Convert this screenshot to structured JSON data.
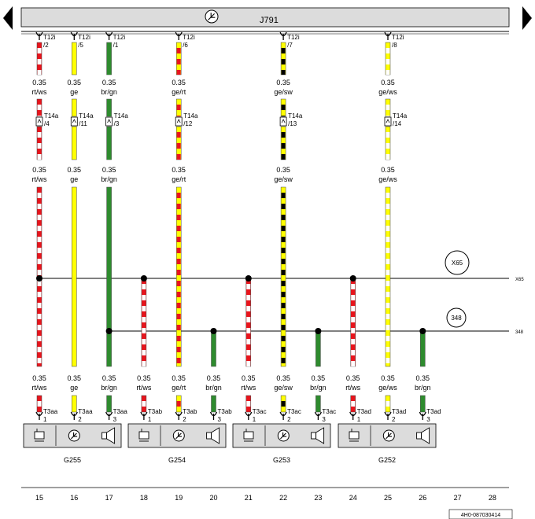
{
  "controller": {
    "id": "J791",
    "icon": "sensor-circle-arrow-icon"
  },
  "nav": {
    "prev_icon": "left-triangle-icon",
    "next_icon": "right-triangle-icon"
  },
  "wire_colors": {
    "rt": "#e8141c",
    "ws": "#ffffff",
    "ge": "#ffff00",
    "br": "#2e8b2e",
    "gn": "#2e8b2e",
    "sw": "#000000"
  },
  "wires": [
    {
      "col": "15",
      "c1": "T12i",
      "p1": "/2",
      "c2": "T14a",
      "p2": "/4",
      "sz": "0.35",
      "color": "rt/ws",
      "c3": "T3aa",
      "p3": "1",
      "bus": "X65"
    },
    {
      "col": "16",
      "c1": "T12i",
      "p1": "/5",
      "c2": "T14a",
      "p2": "/11",
      "sz": "0.35",
      "color": "ge",
      "c3": "T3aa",
      "p3": "2"
    },
    {
      "col": "17",
      "c1": "T12i",
      "p1": "/1",
      "c2": "T14a",
      "p2": "/3",
      "sz": "0.35",
      "color": "br/gn",
      "c3": "T3aa",
      "p3": "3",
      "bus": "348"
    },
    {
      "col": "18",
      "sz": "0.35",
      "color": "rt/ws",
      "c3": "T3ab",
      "p3": "1",
      "bus": "X65"
    },
    {
      "col": "19",
      "c1": "T12i",
      "p1": "/6",
      "c2": "T14a",
      "p2": "/12",
      "sz": "0.35",
      "color": "ge/rt",
      "c3": "T3ab",
      "p3": "2"
    },
    {
      "col": "20",
      "sz": "0.35",
      "color": "br/gn",
      "c3": "T3ab",
      "p3": "3",
      "bus": "348"
    },
    {
      "col": "21",
      "sz": "0.35",
      "color": "rt/ws",
      "c3": "T3ac",
      "p3": "1",
      "bus": "X65"
    },
    {
      "col": "22",
      "c1": "T12i",
      "p1": "/7",
      "c2": "T14a",
      "p2": "/13",
      "sz": "0.35",
      "color": "ge/sw",
      "c3": "T3ac",
      "p3": "2"
    },
    {
      "col": "23",
      "sz": "0.35",
      "color": "br/gn",
      "c3": "T3ac",
      "p3": "3",
      "bus": "348"
    },
    {
      "col": "24",
      "sz": "0.35",
      "color": "rt/ws",
      "c3": "T3ad",
      "p3": "1",
      "bus": "X65"
    },
    {
      "col": "25",
      "c1": "T12i",
      "p1": "/8",
      "c2": "T14a",
      "p2": "/14",
      "sz": "0.35",
      "color": "ge/ws",
      "c3": "T3ad",
      "p3": "2"
    },
    {
      "col": "26",
      "sz": "0.35",
      "color": "br/gn",
      "c3": "T3ad",
      "p3": "3",
      "bus": "348"
    }
  ],
  "buses": [
    {
      "id": "X65",
      "label": "X65",
      "edge": "X65"
    },
    {
      "id": "348",
      "label": "348",
      "edge": "348"
    }
  ],
  "components": [
    {
      "id": "G255",
      "label": "G255"
    },
    {
      "id": "G254",
      "label": "G254"
    },
    {
      "id": "G253",
      "label": "G253"
    },
    {
      "id": "G252",
      "label": "G252"
    }
  ],
  "component_icons": [
    "relay-coil-icon",
    "sensor-circle-arrow-icon",
    "speaker-icon"
  ],
  "columns": [
    "15",
    "16",
    "17",
    "18",
    "19",
    "20",
    "21",
    "22",
    "23",
    "24",
    "25",
    "26",
    "27",
    "28"
  ],
  "doc_code": "4H0-087030414"
}
